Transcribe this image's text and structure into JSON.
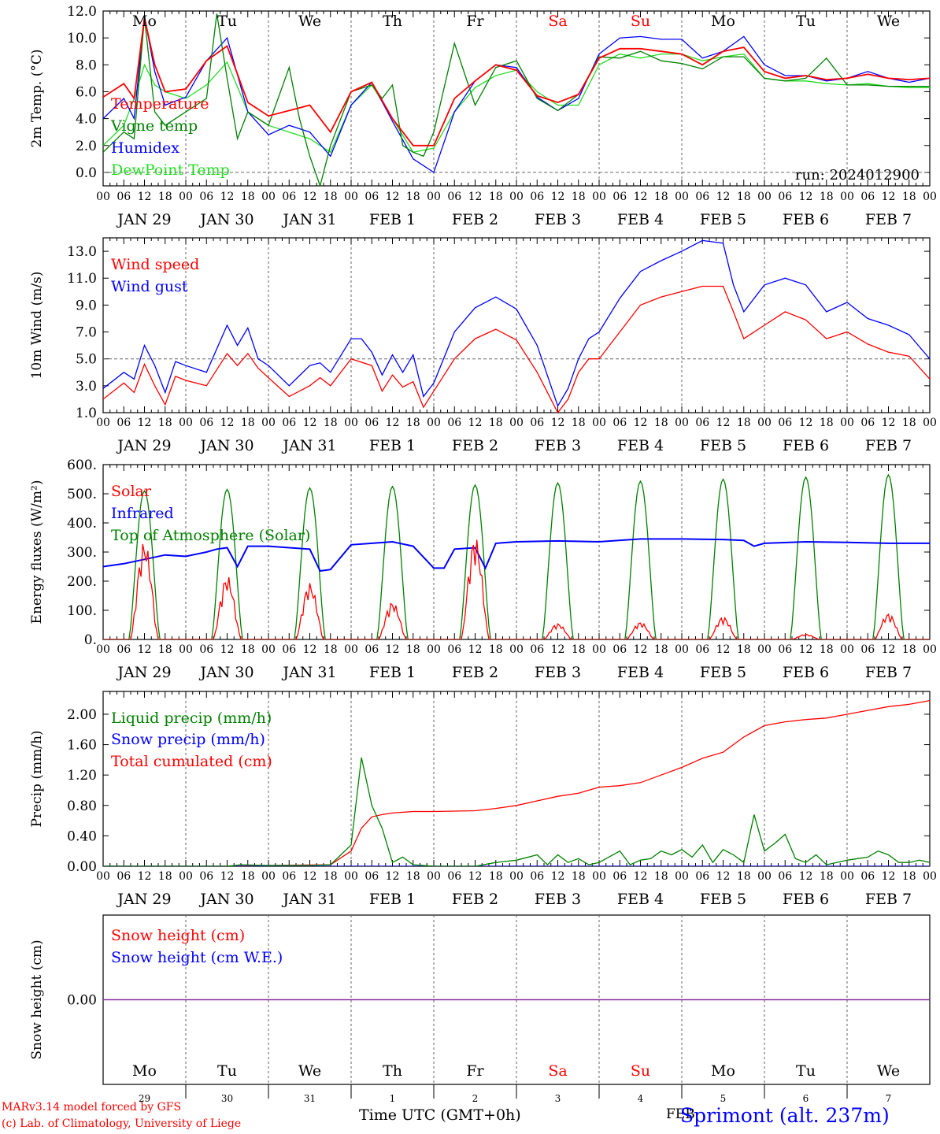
{
  "colors": {
    "red": "#ff0000",
    "green": "#008000",
    "blue": "#0000ff",
    "lightgreen": "#22dd22",
    "purple": "#7f2a9a",
    "grid": "#666666"
  },
  "days": {
    "weekday": [
      "Mo",
      "Tu",
      "We",
      "Th",
      "Fr",
      "Sa",
      "Su",
      "Mo",
      "Tu",
      "We"
    ],
    "weekday_color": [
      "#000000",
      "#000000",
      "#000000",
      "#000000",
      "#000000",
      "#ff0000",
      "#ff0000",
      "#000000",
      "#000000",
      "#000000"
    ],
    "date_labels": [
      "JAN 29",
      "JAN 30",
      "JAN 31",
      "FEB  1",
      "FEB  2",
      "FEB  3",
      "FEB  4",
      "FEB  5",
      "FEB  6",
      "FEB  7"
    ],
    "date_numbers": [
      "29",
      "30",
      "31",
      "1",
      "2",
      "3",
      "4",
      "5",
      "6",
      "7"
    ],
    "hour_ticks": [
      "00",
      "06",
      "12",
      "18"
    ],
    "final_hour": "00"
  },
  "footer": {
    "credit_line1": "MARv3.14 model forced by GFS",
    "credit_line2": "(c) Lab. of Climatology, University of Liege",
    "xaxis_title": "Time UTC (GMT+0h)",
    "month_label": "FEB",
    "station": "Sprimont (alt. 237m)"
  },
  "chart_data": [
    {
      "id": "temp",
      "type": "line",
      "ylabel": "2m Temp. (°C)",
      "ylim": [
        -1.0,
        12.0
      ],
      "yticks": [
        0.0,
        2.0,
        4.0,
        6.0,
        8.0,
        10.0,
        12.0
      ],
      "ytick_labels": [
        "0.0",
        "2.0",
        "4.0",
        "6.0",
        "8.0",
        "10.0",
        "12.0"
      ],
      "ref_line": 0.0,
      "annotation": "run: 2024012900",
      "x_unit": "hours from 2024-01-29 00 UTC",
      "series": [
        {
          "name": "Temperature",
          "color": "#ff0000",
          "x": [
            0,
            6,
            9,
            12,
            15,
            18,
            24,
            30,
            36,
            42,
            48,
            54,
            60,
            66,
            72,
            78,
            84,
            90,
            96,
            102,
            108,
            114,
            120,
            126,
            132,
            138,
            144,
            150,
            156,
            162,
            168,
            174,
            180,
            186,
            192,
            198,
            204,
            210,
            216,
            222,
            228,
            234,
            240
          ],
          "y": [
            5.6,
            6.6,
            5.5,
            11.5,
            8.0,
            6.0,
            6.2,
            8.3,
            9.4,
            5.2,
            4.2,
            4.6,
            5.0,
            3.0,
            6.0,
            6.7,
            4.0,
            2.0,
            2.0,
            5.5,
            6.8,
            8.0,
            7.6,
            5.7,
            5.2,
            5.8,
            8.5,
            9.2,
            9.2,
            9.0,
            8.8,
            8.0,
            9.0,
            9.3,
            7.5,
            7.0,
            7.2,
            6.9,
            7.0,
            7.3,
            7.0,
            6.9,
            7.0
          ]
        },
        {
          "name": "Vigne temp",
          "color": "#008000",
          "x": [
            0,
            6,
            9,
            12,
            15,
            18,
            24,
            30,
            33,
            36,
            39,
            42,
            48,
            54,
            57,
            60,
            63,
            66,
            72,
            78,
            81,
            84,
            87,
            90,
            93,
            96,
            102,
            108,
            114,
            120,
            126,
            132,
            138,
            144,
            150,
            156,
            162,
            168,
            174,
            180,
            186,
            192,
            198,
            204,
            210,
            216,
            222,
            228,
            234,
            240
          ],
          "y": [
            1.5,
            3.0,
            2.5,
            11.5,
            4.5,
            3.5,
            4.5,
            5.5,
            11.8,
            7.0,
            2.5,
            4.5,
            3.5,
            7.8,
            4.0,
            1.2,
            -1.0,
            2.0,
            6.0,
            6.5,
            5.5,
            6.5,
            2.0,
            1.5,
            1.2,
            3.0,
            9.6,
            5.0,
            7.8,
            8.3,
            5.5,
            4.6,
            5.8,
            8.6,
            8.5,
            9.0,
            8.3,
            8.1,
            7.7,
            8.6,
            8.6,
            7.0,
            6.8,
            7.0,
            8.5,
            6.5,
            6.5,
            6.4,
            6.4,
            6.4
          ]
        },
        {
          "name": "Humidex",
          "color": "#0000ff",
          "x": [
            0,
            6,
            9,
            12,
            15,
            18,
            24,
            30,
            36,
            42,
            48,
            54,
            60,
            66,
            72,
            78,
            84,
            90,
            96,
            102,
            108,
            114,
            120,
            126,
            132,
            138,
            144,
            150,
            156,
            162,
            168,
            174,
            180,
            186,
            192,
            198,
            204,
            210,
            216,
            222,
            228,
            234,
            240
          ],
          "y": [
            4.0,
            5.5,
            4.0,
            11.6,
            7.5,
            5.0,
            5.6,
            8.3,
            10.0,
            4.5,
            2.8,
            3.5,
            3.0,
            1.2,
            5.0,
            6.7,
            3.8,
            1.0,
            0.0,
            4.5,
            6.8,
            8.0,
            7.8,
            5.6,
            4.6,
            5.5,
            8.8,
            10.0,
            10.1,
            9.9,
            9.9,
            8.5,
            9.0,
            10.1,
            8.0,
            7.2,
            7.2,
            6.8,
            7.0,
            7.5,
            7.0,
            6.7,
            7.0
          ]
        },
        {
          "name": "DewPoint Temp",
          "color": "#22dd22",
          "x": [
            0,
            6,
            9,
            12,
            15,
            18,
            24,
            30,
            36,
            42,
            48,
            54,
            60,
            66,
            72,
            78,
            84,
            90,
            96,
            102,
            108,
            114,
            120,
            126,
            132,
            138,
            144,
            150,
            156,
            162,
            168,
            174,
            180,
            186,
            192,
            198,
            204,
            210,
            216,
            222,
            228,
            234,
            240
          ],
          "y": [
            2.0,
            3.5,
            5.5,
            8.0,
            6.5,
            6.0,
            5.5,
            6.5,
            8.2,
            4.5,
            3.5,
            3.0,
            2.5,
            1.5,
            5.0,
            6.5,
            4.0,
            1.5,
            1.8,
            4.5,
            6.3,
            7.2,
            7.6,
            6.0,
            5.0,
            5.0,
            8.0,
            8.8,
            8.5,
            8.8,
            8.8,
            8.3,
            8.6,
            8.8,
            7.0,
            6.8,
            6.8,
            6.6,
            6.5,
            6.6,
            6.4,
            6.3,
            6.3
          ]
        }
      ]
    },
    {
      "id": "wind",
      "type": "line",
      "ylabel": "10m Wind (m/s)",
      "ylim": [
        1.0,
        14.0
      ],
      "yticks": [
        1.0,
        3.0,
        5.0,
        7.0,
        9.0,
        11.0,
        13.0
      ],
      "ytick_labels": [
        "1.0",
        "3.0",
        "5.0",
        "7.0",
        "9.0",
        "11.0",
        "13.0"
      ],
      "ref_line": 5.0,
      "x_unit": "hours from 2024-01-29 00 UTC",
      "series": [
        {
          "name": "Wind speed",
          "color": "#ff0000",
          "x": [
            0,
            6,
            9,
            12,
            15,
            18,
            21,
            24,
            30,
            36,
            39,
            42,
            45,
            48,
            54,
            60,
            63,
            66,
            72,
            78,
            81,
            84,
            87,
            90,
            93,
            96,
            102,
            108,
            114,
            120,
            126,
            132,
            135,
            138,
            141,
            144,
            150,
            156,
            162,
            168,
            174,
            180,
            183,
            186,
            192,
            198,
            204,
            210,
            216,
            222,
            228,
            234,
            240
          ],
          "y": [
            2.0,
            3.2,
            2.5,
            4.6,
            3.0,
            1.6,
            3.7,
            3.4,
            3.0,
            5.4,
            4.5,
            5.4,
            4.3,
            3.6,
            2.2,
            3.0,
            3.6,
            3.0,
            5.0,
            4.5,
            2.6,
            3.8,
            2.9,
            3.3,
            1.4,
            2.6,
            5.0,
            6.5,
            7.2,
            6.4,
            4.0,
            1.0,
            2.0,
            4.0,
            5.0,
            5.0,
            7.0,
            9.0,
            9.6,
            10.0,
            10.4,
            10.4,
            8.5,
            6.5,
            7.5,
            8.5,
            7.9,
            6.5,
            7.0,
            6.1,
            5.5,
            5.2,
            3.5
          ]
        },
        {
          "name": "Wind gust",
          "color": "#0000ff",
          "x": [
            0,
            6,
            9,
            12,
            15,
            18,
            21,
            24,
            30,
            36,
            39,
            42,
            45,
            48,
            54,
            60,
            63,
            66,
            72,
            75,
            78,
            81,
            84,
            87,
            90,
            93,
            96,
            102,
            108,
            114,
            120,
            126,
            132,
            135,
            138,
            141,
            144,
            150,
            156,
            162,
            168,
            174,
            180,
            183,
            186,
            192,
            198,
            204,
            210,
            216,
            222,
            228,
            234,
            240
          ],
          "y": [
            2.8,
            4.0,
            3.5,
            6.0,
            4.5,
            2.5,
            4.8,
            4.5,
            4.0,
            7.5,
            6.0,
            7.3,
            5.0,
            4.5,
            3.0,
            4.5,
            4.7,
            4.0,
            6.5,
            6.5,
            5.5,
            3.8,
            5.3,
            4.0,
            5.3,
            2.2,
            3.2,
            7.0,
            8.8,
            9.6,
            8.7,
            6.0,
            1.5,
            2.8,
            5.0,
            6.5,
            7.0,
            9.5,
            11.5,
            12.3,
            13.0,
            13.8,
            13.6,
            10.5,
            8.5,
            10.5,
            11.0,
            10.5,
            8.5,
            9.2,
            8.0,
            7.5,
            6.8,
            5.0
          ]
        }
      ]
    },
    {
      "id": "energy",
      "type": "line",
      "ylabel": "Energy fluxes (W/m²)",
      "ylim": [
        0.0,
        600.0
      ],
      "yticks": [
        0.0,
        100.0,
        200.0,
        300.0,
        400.0,
        500.0,
        600.0
      ],
      "ytick_labels": [
        "0.",
        "100.",
        "200.",
        "300.",
        "400.",
        "500.",
        "600."
      ],
      "x_unit": "hours from 2024-01-29 00 UTC",
      "series": [
        {
          "name": "Solar",
          "color": "#ff0000",
          "daily_peak": [
            340,
            220,
            195,
            130,
            355,
            55,
            60,
            78,
            18,
            90
          ]
        },
        {
          "name": "Infrared",
          "color": "#0000ff",
          "x": [
            0,
            6,
            12,
            18,
            24,
            30,
            33,
            36,
            39,
            42,
            48,
            54,
            60,
            63,
            66,
            72,
            78,
            84,
            90,
            96,
            99,
            102,
            108,
            111,
            114,
            120,
            132,
            144,
            156,
            168,
            180,
            186,
            189,
            192,
            204,
            216,
            228,
            240
          ],
          "y": [
            250,
            260,
            275,
            290,
            285,
            300,
            310,
            315,
            250,
            320,
            320,
            315,
            310,
            235,
            240,
            325,
            330,
            335,
            320,
            245,
            245,
            310,
            315,
            245,
            330,
            335,
            338,
            335,
            345,
            345,
            343,
            340,
            320,
            330,
            335,
            333,
            330,
            330
          ]
        },
        {
          "name": "Top of Atmosphere (Solar)",
          "color": "#008000",
          "daily_peak": [
            510,
            515,
            520,
            525,
            530,
            537,
            543,
            550,
            557,
            565
          ]
        }
      ]
    },
    {
      "id": "precip",
      "type": "line",
      "ylabel": "Precip (mm/h)",
      "ylim": [
        0.0,
        2.3
      ],
      "yticks": [
        0.0,
        0.4,
        0.8,
        1.2,
        1.6,
        2.0
      ],
      "ytick_labels": [
        "0.00",
        "0.40",
        "0.80",
        "1.20",
        "1.60",
        "2.00"
      ],
      "x_unit": "hours from 2024-01-29 00 UTC",
      "series": [
        {
          "name": "Liquid precip (mm/h)",
          "color": "#008000",
          "x": [
            0,
            36,
            40,
            48,
            60,
            66,
            72,
            75,
            78,
            81,
            84,
            87,
            90,
            93,
            96,
            108,
            114,
            120,
            126,
            129,
            132,
            135,
            138,
            141,
            144,
            150,
            153,
            156,
            159,
            162,
            165,
            168,
            171,
            174,
            177,
            180,
            183,
            186,
            189,
            192,
            195,
            198,
            201,
            204,
            207,
            210,
            213,
            216,
            219,
            222,
            225,
            228,
            231,
            234,
            237,
            240
          ],
          "y": [
            0,
            0,
            0.02,
            0.01,
            0.01,
            0.02,
            0.28,
            1.43,
            0.8,
            0.5,
            0.05,
            0.12,
            0.02,
            0.01,
            0,
            0,
            0.05,
            0.08,
            0.15,
            0.02,
            0.15,
            0.05,
            0.1,
            0.02,
            0.05,
            0.2,
            0.02,
            0.08,
            0.1,
            0.2,
            0.15,
            0.22,
            0.12,
            0.28,
            0.05,
            0.22,
            0.15,
            0.05,
            0.68,
            0.2,
            0.3,
            0.42,
            0.1,
            0.05,
            0.15,
            0.02,
            0.05,
            0.08,
            0.1,
            0.12,
            0.2,
            0.15,
            0.05,
            0.05,
            0.08,
            0.05
          ]
        },
        {
          "name": "Snow precip (mm/h)",
          "color": "#0000ff",
          "x": [
            0,
            240
          ],
          "y": [
            0,
            0
          ]
        },
        {
          "name": "Total cumulated (cm)",
          "color": "#ff0000",
          "x": [
            0,
            36,
            48,
            66,
            72,
            75,
            78,
            81,
            84,
            90,
            96,
            108,
            114,
            120,
            126,
            132,
            138,
            144,
            150,
            156,
            162,
            168,
            174,
            180,
            186,
            192,
            198,
            204,
            210,
            216,
            222,
            228,
            234,
            240
          ],
          "y": [
            0,
            0,
            0.01,
            0.02,
            0.2,
            0.5,
            0.65,
            0.68,
            0.7,
            0.72,
            0.72,
            0.73,
            0.76,
            0.8,
            0.86,
            0.92,
            0.96,
            1.04,
            1.06,
            1.1,
            1.2,
            1.3,
            1.42,
            1.5,
            1.7,
            1.85,
            1.9,
            1.93,
            1.95,
            2.0,
            2.05,
            2.1,
            2.13,
            2.18
          ]
        }
      ]
    },
    {
      "id": "snow",
      "type": "line",
      "ylabel": "Snow height (cm)",
      "ylim": [
        -1.0,
        1.0
      ],
      "yticks": [
        0.0
      ],
      "ytick_labels": [
        "0.00"
      ],
      "x_unit": "hours from 2024-01-29 00 UTC",
      "series": [
        {
          "name": "Snow height (cm)",
          "color": "#ff0000",
          "x": [
            0,
            240
          ],
          "y": [
            0,
            0
          ]
        },
        {
          "name": "Snow height (cm W.E.)",
          "color": "#0000ff",
          "x": [
            0,
            240
          ],
          "y": [
            0,
            0
          ]
        }
      ]
    }
  ]
}
